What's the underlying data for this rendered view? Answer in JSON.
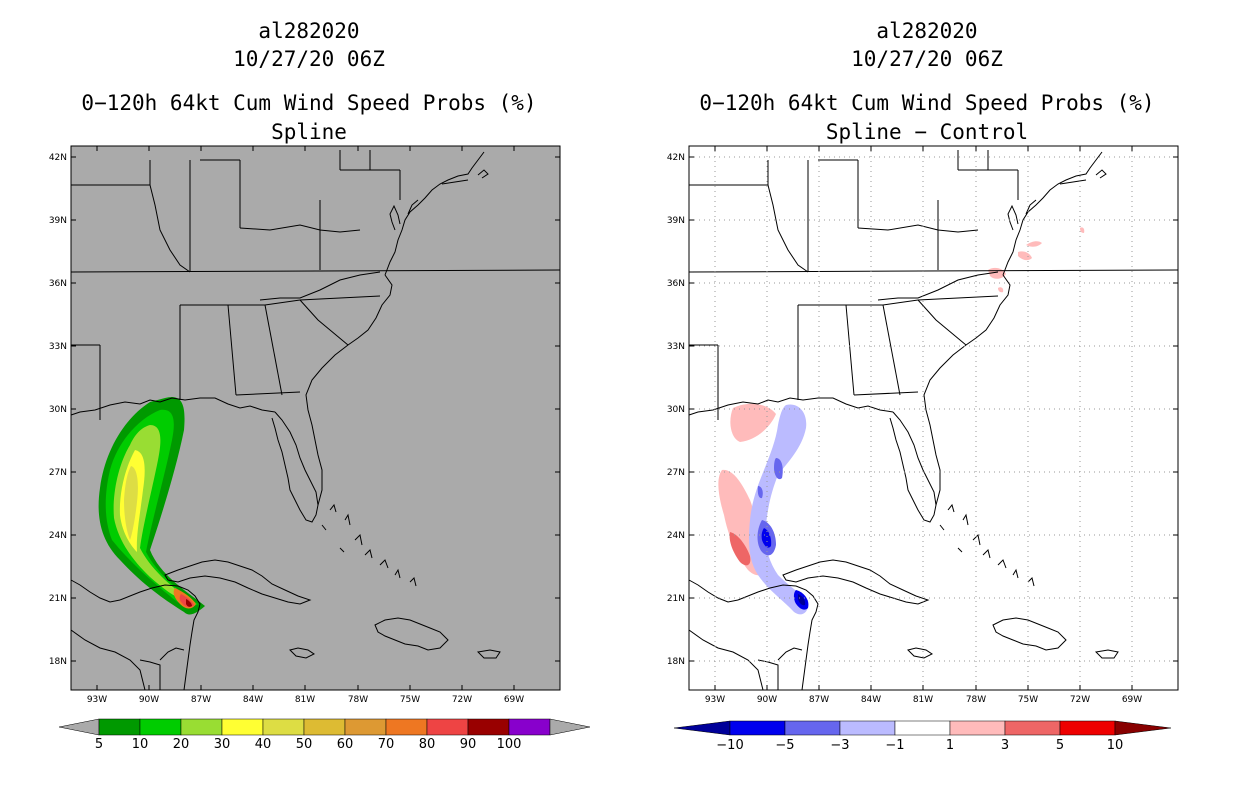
{
  "left_panel": {
    "storm_id": "al282020",
    "datetime": "10/27/20 06Z",
    "product": "0−120h 64kt Cum Wind Speed Probs (%)",
    "subtitle": "Spline",
    "lat_labels": [
      "42N",
      "39N",
      "36N",
      "33N",
      "30N",
      "27N",
      "24N",
      "21N",
      "18N"
    ],
    "lon_labels": [
      "93W",
      "90W",
      "87W",
      "84W",
      "81W",
      "78W",
      "75W",
      "72W",
      "69W"
    ],
    "colorbar": {
      "labels": [
        "5",
        "10",
        "20",
        "30",
        "40",
        "50",
        "60",
        "70",
        "80",
        "90",
        "100"
      ],
      "colors": [
        "#009900",
        "#00cc00",
        "#99dd33",
        "#ffff33",
        "#dddd44",
        "#ddbb33",
        "#dd9933",
        "#ee7722",
        "#ee4444",
        "#990000",
        "#8800cc"
      ],
      "extend_color": "#aaaaaa"
    },
    "background_color": "#aaaaaa"
  },
  "right_panel": {
    "storm_id": "al282020",
    "datetime": "10/27/20 06Z",
    "product": "0−120h 64kt Cum Wind Speed Probs (%)",
    "subtitle": "Spline − Control",
    "lat_labels": [
      "42N",
      "39N",
      "36N",
      "33N",
      "30N",
      "27N",
      "24N",
      "21N",
      "18N"
    ],
    "lon_labels": [
      "93W",
      "90W",
      "87W",
      "84W",
      "81W",
      "78W",
      "75W",
      "72W",
      "69W"
    ],
    "colorbar": {
      "labels": [
        "−10",
        "−5",
        "−3",
        "−1",
        "1",
        "3",
        "5",
        "10"
      ],
      "colors": [
        "#000099",
        "#0000ee",
        "#6666ee",
        "#bbbbff",
        "#ffffff",
        "#ffbbbb",
        "#ee6666",
        "#ee0000",
        "#880000"
      ]
    },
    "background_color": "#ffffff"
  }
}
